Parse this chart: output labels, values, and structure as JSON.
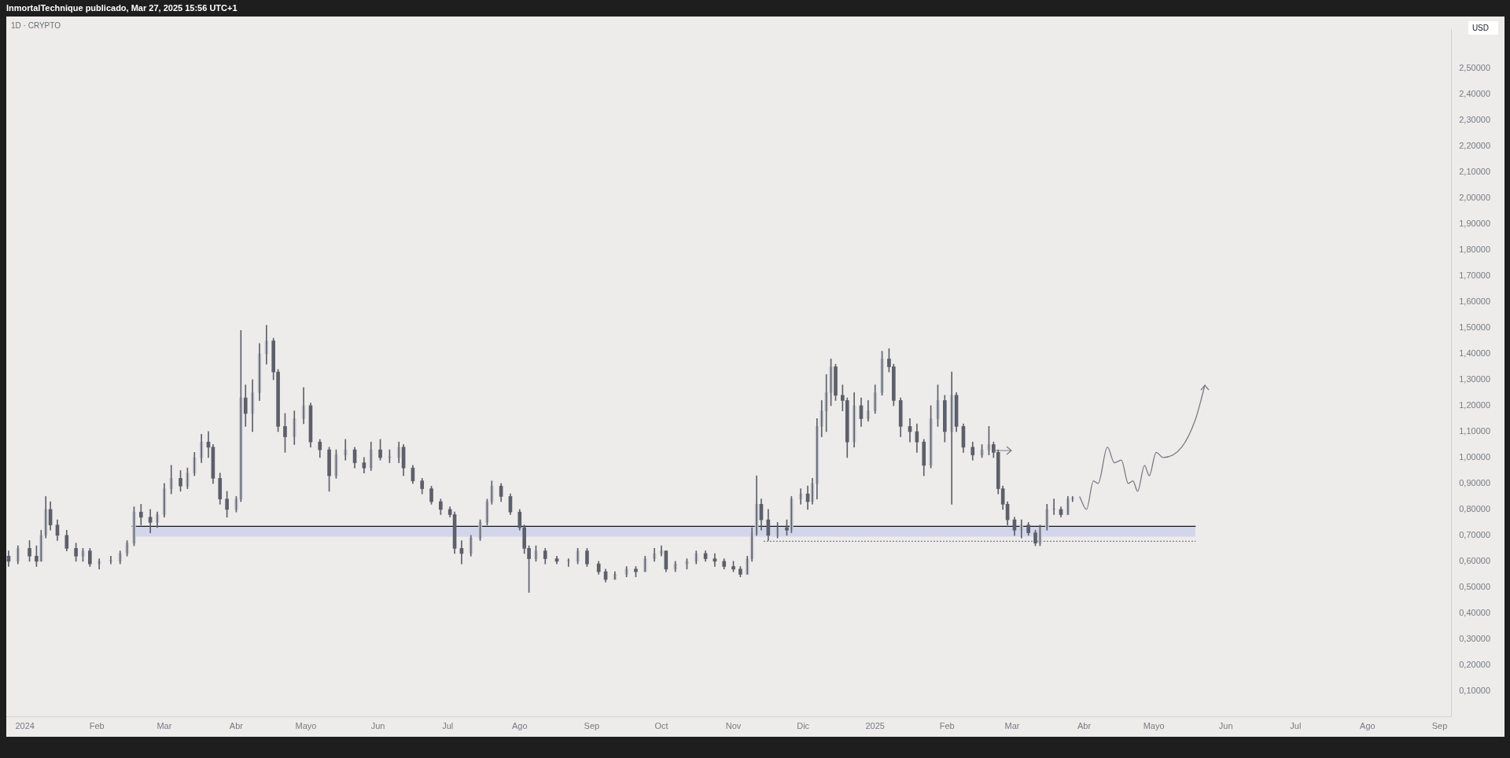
{
  "chart_data": {
    "type": "candlestick",
    "title": "1D · CRYPTO",
    "ylabel": "USD",
    "annotations": [
      "InmortalTechnique publicado, Mar 27, 2025 15:56 UTC+1"
    ],
    "xlim": [
      "2023-12-24",
      "2025-09-06"
    ],
    "ylim": [
      0,
      2.65
    ],
    "xticks": [
      {
        "value": "2024-01-01",
        "label": "2024"
      },
      {
        "value": "2024-02-01",
        "label": "Feb"
      },
      {
        "value": "2024-03-01",
        "label": "Mar"
      },
      {
        "value": "2024-04-01",
        "label": "Abr"
      },
      {
        "value": "2024-05-01",
        "label": "Mayo"
      },
      {
        "value": "2024-06-01",
        "label": "Jun"
      },
      {
        "value": "2024-07-01",
        "label": "Jul"
      },
      {
        "value": "2024-08-01",
        "label": "Ago"
      },
      {
        "value": "2024-09-01",
        "label": "Sep"
      },
      {
        "value": "2024-10-01",
        "label": "Oct"
      },
      {
        "value": "2024-11-01",
        "label": "Nov"
      },
      {
        "value": "2024-12-01",
        "label": "Dic"
      },
      {
        "value": "2025-01-01",
        "label": "2025"
      },
      {
        "value": "2025-02-01",
        "label": "Feb"
      },
      {
        "value": "2025-03-01",
        "label": "Mar"
      },
      {
        "value": "2025-04-01",
        "label": "Abr"
      },
      {
        "value": "2025-05-01",
        "label": "Mayo"
      },
      {
        "value": "2025-06-01",
        "label": "Jun"
      },
      {
        "value": "2025-07-01",
        "label": "Jul"
      },
      {
        "value": "2025-08-01",
        "label": "Ago"
      },
      {
        "value": "2025-09-01",
        "label": "Sep"
      }
    ],
    "yticks": [
      {
        "value": 0.1,
        "label": "0,10000"
      },
      {
        "value": 0.2,
        "label": "0,20000"
      },
      {
        "value": 0.3,
        "label": "0,30000"
      },
      {
        "value": 0.4,
        "label": "0,40000"
      },
      {
        "value": 0.5,
        "label": "0,50000"
      },
      {
        "value": 0.6,
        "label": "0,60000"
      },
      {
        "value": 0.7,
        "label": "0,70000"
      },
      {
        "value": 0.8,
        "label": "0,80000"
      },
      {
        "value": 0.9,
        "label": "0,90000"
      },
      {
        "value": 1.0,
        "label": "1,00000"
      },
      {
        "value": 1.1,
        "label": "1,10000"
      },
      {
        "value": 1.2,
        "label": "1,20000"
      },
      {
        "value": 1.3,
        "label": "1,30000"
      },
      {
        "value": 1.4,
        "label": "1,40000"
      },
      {
        "value": 1.5,
        "label": "1,50000"
      },
      {
        "value": 1.6,
        "label": "1,60000"
      },
      {
        "value": 1.7,
        "label": "1,70000"
      },
      {
        "value": 1.8,
        "label": "1,80000"
      },
      {
        "value": 1.9,
        "label": "1,90000"
      },
      {
        "value": 2.0,
        "label": "2,00000"
      },
      {
        "value": 2.1,
        "label": "2,10000"
      },
      {
        "value": 2.2,
        "label": "2,20000"
      },
      {
        "value": 2.3,
        "label": "2,30000"
      },
      {
        "value": 2.4,
        "label": "2,40000"
      },
      {
        "value": 2.5,
        "label": "2,50000"
      }
    ],
    "series": [
      {
        "type": "line",
        "color": "#131722",
        "line_style": "solid",
        "x": [
          "2024-02-16",
          "2025-05-19"
        ],
        "values": [
          0.735,
          0.735
        ],
        "lower": [
          0.695,
          0.695
        ],
        "upper": [
          0.735,
          0.735
        ]
      },
      {
        "type": "line",
        "color": "#787b86",
        "line_style": "dotted",
        "x": [
          "2024-11-14",
          "2025-05-19"
        ],
        "values": [
          0.677,
          0.677
        ]
      },
      {
        "type": "line",
        "color": "#787b86",
        "line_style": "solid",
        "x": [
          "2025-03-30",
          "2025-04-02",
          "2025-04-05",
          "2025-04-07",
          "2025-04-11",
          "2025-04-14",
          "2025-04-17",
          "2025-04-20",
          "2025-04-22",
          "2025-04-24",
          "2025-04-27",
          "2025-04-29",
          "2025-05-02",
          "2025-05-05",
          "2025-05-13",
          "2025-05-19",
          "2025-05-23"
        ],
        "values": [
          0.85,
          0.8,
          0.91,
          0.9,
          1.04,
          0.98,
          0.99,
          0.9,
          0.91,
          0.87,
          0.97,
          0.93,
          1.02,
          1.0,
          1.04,
          1.15,
          1.28
        ]
      },
      {
        "color": "#5d606b",
        "colors": [
          "#5d606b",
          "#c9cbd3",
          "#5d606b",
          "#5d606b",
          "#c9cbd3",
          "#c9cbd3",
          "#5d606b",
          "#5d606b",
          "#5d606b",
          "#5d606b",
          "#c9cbd3",
          "#5d606b",
          "#c9cbd3",
          "#c9cbd3",
          "#c9cbd3",
          "#c9cbd3",
          "#c9cbd3",
          "#5d606b",
          "#5d606b",
          "#c9cbd3",
          "#c9cbd3",
          "#c9cbd3",
          "#5d606b",
          "#c9cbd3",
          "#c9cbd3",
          "#c9cbd3",
          "#5d606b",
          "#5d606b",
          "#5d606b",
          "#5d606b",
          "#c9cbd3",
          "#c9cbd3",
          "#5d606b",
          "#c9cbd3",
          "#c9cbd3",
          "#c9cbd3",
          "#5d606b",
          "#5d606b",
          "#5d606b",
          "#c9cbd3",
          "#c9cbd3",
          "#5d606b",
          "#5d606b",
          "#5d606b",
          "#c9cbd3",
          "#c9cbd3",
          "#5d606b",
          "#5d606b",
          "#c9cbd3",
          "#5d606b",
          "#c9cbd3",
          "#c9cbd3",
          "#5d606b",
          "#5d606b",
          "#5d606b",
          "#5d606b",
          "#5d606b",
          "#5d606b",
          "#5d606b",
          "#5d606b",
          "#c9cbd3",
          "#c9cbd3",
          "#c9cbd3",
          "#c9cbd3",
          "#5d606b",
          "#5d606b",
          "#5d606b",
          "#5d606b",
          "#5d606b",
          "#c9cbd3",
          "#5d606b",
          "#5d606b",
          "#c9cbd3",
          "#c9cbd3",
          "#5d606b",
          "#5d606b",
          "#5d606b",
          "#c9cbd3",
          "#c9cbd3",
          "#5d606b",
          "#c9cbd3",
          "#c9cbd3",
          "#c9cbd3",
          "#5d606b",
          "#c9cbd3",
          "#c9cbd3",
          "#c9cbd3",
          "#5d606b",
          "#5d606b",
          "#5d606b",
          "#5d606b",
          "#5d606b",
          "#c9cbd3",
          "#c9cbd3",
          "#c9cbd3",
          "#5d606b",
          "#5d606b",
          "#c9cbd3",
          "#5d606b",
          "#c9cbd3",
          "#c9cbd3",
          "#5d606b",
          "#c9cbd3",
          "#c9cbd3",
          "#c9cbd3",
          "#c9cbd3",
          "#c9cbd3",
          "#5d606b",
          "#5d606b",
          "#5d606b",
          "#c9cbd3",
          "#5d606b",
          "#c9cbd3",
          "#c9cbd3",
          "#c9cbd3",
          "#5d606b",
          "#5d606b",
          "#5d606b",
          "#5d606b",
          "#5d606b",
          "#5d606b",
          "#c9cbd3",
          "#c9cbd3",
          "#5d606b",
          "#c9cbd3",
          "#5d606b",
          "#5d606b",
          "#5d606b",
          "#c9cbd3",
          "#c9cbd3",
          "#5d606b",
          "#5d606b",
          "#5d606b",
          "#5d606b",
          "#5d606b",
          "#c9cbd3",
          "#5d606b",
          "#5d606b",
          "#c9cbd3",
          "#c9cbd3",
          "#c9cbd3",
          "#5d606b",
          "#c9cbd3",
          "#c9cbd3"
        ],
        "x": [
          "2023-12-25",
          "2023-12-29",
          "2024-01-03",
          "2024-01-06",
          "2024-01-08",
          "2024-01-10",
          "2024-01-12",
          "2024-01-15",
          "2024-01-19",
          "2024-01-23",
          "2024-01-26",
          "2024-01-29",
          "2024-02-02",
          "2024-02-07",
          "2024-02-11",
          "2024-02-14",
          "2024-02-17",
          "2024-02-20",
          "2024-02-24",
          "2024-02-27",
          "2024-03-01",
          "2024-03-04",
          "2024-03-08",
          "2024-03-11",
          "2024-03-14",
          "2024-03-17",
          "2024-03-20",
          "2024-03-22",
          "2024-03-25",
          "2024-03-28",
          "2024-04-01",
          "2024-04-03",
          "2024-04-05",
          "2024-04-08",
          "2024-04-11",
          "2024-04-14",
          "2024-04-17",
          "2024-04-19",
          "2024-04-22",
          "2024-04-26",
          "2024-04-30",
          "2024-05-03",
          "2024-05-07",
          "2024-05-11",
          "2024-05-14",
          "2024-05-18",
          "2024-05-22",
          "2024-05-26",
          "2024-05-29",
          "2024-06-02",
          "2024-06-06",
          "2024-06-10",
          "2024-06-12",
          "2024-06-16",
          "2024-06-20",
          "2024-06-24",
          "2024-06-28",
          "2024-07-02",
          "2024-07-04",
          "2024-07-07",
          "2024-07-11",
          "2024-07-15",
          "2024-07-18",
          "2024-07-20",
          "2024-07-24",
          "2024-07-28",
          "2024-08-01",
          "2024-08-03",
          "2024-08-05",
          "2024-08-08",
          "2024-08-12",
          "2024-08-17",
          "2024-08-22",
          "2024-08-26",
          "2024-08-30",
          "2024-09-04",
          "2024-09-07",
          "2024-09-11",
          "2024-09-16",
          "2024-09-20",
          "2024-09-24",
          "2024-09-28",
          "2024-10-01",
          "2024-10-03",
          "2024-10-07",
          "2024-10-12",
          "2024-10-16",
          "2024-10-20",
          "2024-10-24",
          "2024-10-28",
          "2024-11-01",
          "2024-11-04",
          "2024-11-07",
          "2024-11-09",
          "2024-11-11",
          "2024-11-13",
          "2024-11-16",
          "2024-11-20",
          "2024-11-24",
          "2024-11-26",
          "2024-11-30",
          "2024-12-03",
          "2024-12-05",
          "2024-12-07",
          "2024-12-09",
          "2024-12-11",
          "2024-12-13",
          "2024-12-15",
          "2024-12-18",
          "2024-12-20",
          "2024-12-23",
          "2024-12-26",
          "2024-12-29",
          "2025-01-01",
          "2025-01-04",
          "2025-01-07",
          "2025-01-09",
          "2025-01-12",
          "2025-01-16",
          "2025-01-19",
          "2025-01-22",
          "2025-01-25",
          "2025-01-28",
          "2025-01-31",
          "2025-02-03",
          "2025-02-05",
          "2025-02-08",
          "2025-02-12",
          "2025-02-16",
          "2025-02-19",
          "2025-02-21",
          "2025-02-23",
          "2025-02-25",
          "2025-02-27",
          "2025-03-02",
          "2025-03-05",
          "2025-03-08",
          "2025-03-11",
          "2025-03-13",
          "2025-03-16",
          "2025-03-19",
          "2025-03-22",
          "2025-03-25",
          "2025-03-27"
        ],
        "ohlc": [
          [
            0.62,
            0.64,
            0.58,
            0.6
          ],
          [
            0.6,
            0.66,
            0.59,
            0.65
          ],
          [
            0.65,
            0.68,
            0.6,
            0.62
          ],
          [
            0.62,
            0.66,
            0.58,
            0.6
          ],
          [
            0.6,
            0.72,
            0.6,
            0.7
          ],
          [
            0.7,
            0.85,
            0.69,
            0.8
          ],
          [
            0.8,
            0.83,
            0.72,
            0.74
          ],
          [
            0.74,
            0.76,
            0.68,
            0.7
          ],
          [
            0.7,
            0.72,
            0.64,
            0.65
          ],
          [
            0.65,
            0.67,
            0.6,
            0.62
          ],
          [
            0.62,
            0.65,
            0.6,
            0.64
          ],
          [
            0.64,
            0.65,
            0.58,
            0.59
          ],
          [
            0.59,
            0.61,
            0.57,
            0.6
          ],
          [
            0.6,
            0.62,
            0.59,
            0.6
          ],
          [
            0.6,
            0.64,
            0.59,
            0.63
          ],
          [
            0.63,
            0.68,
            0.62,
            0.67
          ],
          [
            0.67,
            0.81,
            0.66,
            0.79
          ],
          [
            0.79,
            0.82,
            0.74,
            0.77
          ],
          [
            0.77,
            0.8,
            0.71,
            0.75
          ],
          [
            0.75,
            0.79,
            0.73,
            0.78
          ],
          [
            0.78,
            0.9,
            0.77,
            0.88
          ],
          [
            0.88,
            0.97,
            0.86,
            0.92
          ],
          [
            0.92,
            0.95,
            0.87,
            0.89
          ],
          [
            0.89,
            0.96,
            0.88,
            0.94
          ],
          [
            0.94,
            1.02,
            0.93,
            1.0
          ],
          [
            1.0,
            1.09,
            0.98,
            1.06
          ],
          [
            1.06,
            1.1,
            1.0,
            1.04
          ],
          [
            1.04,
            1.05,
            0.9,
            0.92
          ],
          [
            0.92,
            0.94,
            0.82,
            0.84
          ],
          [
            0.84,
            0.87,
            0.77,
            0.8
          ],
          [
            0.8,
            0.85,
            0.79,
            0.84
          ],
          [
            0.84,
            1.49,
            0.83,
            1.23
          ],
          [
            1.23,
            1.28,
            1.12,
            1.17
          ],
          [
            1.17,
            1.3,
            1.1,
            1.25
          ],
          [
            1.25,
            1.44,
            1.22,
            1.4
          ],
          [
            1.4,
            1.51,
            1.36,
            1.45
          ],
          [
            1.45,
            1.46,
            1.3,
            1.33
          ],
          [
            1.33,
            1.34,
            1.1,
            1.12
          ],
          [
            1.12,
            1.17,
            1.02,
            1.08
          ],
          [
            1.08,
            1.18,
            1.05,
            1.15
          ],
          [
            1.15,
            1.27,
            1.13,
            1.2
          ],
          [
            1.2,
            1.21,
            1.04,
            1.06
          ],
          [
            1.06,
            1.07,
            1.0,
            1.03
          ],
          [
            1.03,
            1.04,
            0.87,
            0.93
          ],
          [
            0.93,
            1.03,
            0.92,
            1.01
          ],
          [
            1.01,
            1.07,
            0.99,
            1.03
          ],
          [
            1.03,
            1.04,
            0.96,
            0.98
          ],
          [
            0.98,
            1.0,
            0.94,
            0.96
          ],
          [
            0.96,
            1.06,
            0.95,
            1.03
          ],
          [
            1.03,
            1.07,
            0.99,
            1.0
          ],
          [
            1.0,
            1.03,
            0.98,
            1.0
          ],
          [
            1.0,
            1.06,
            0.98,
            1.04
          ],
          [
            1.04,
            1.05,
            0.93,
            0.96
          ],
          [
            0.96,
            0.97,
            0.9,
            0.91
          ],
          [
            0.91,
            0.92,
            0.86,
            0.88
          ],
          [
            0.88,
            0.89,
            0.82,
            0.83
          ],
          [
            0.83,
            0.84,
            0.78,
            0.8
          ],
          [
            0.8,
            0.81,
            0.77,
            0.78
          ],
          [
            0.78,
            0.79,
            0.63,
            0.65
          ],
          [
            0.65,
            0.68,
            0.59,
            0.63
          ],
          [
            0.63,
            0.7,
            0.62,
            0.69
          ],
          [
            0.69,
            0.76,
            0.68,
            0.75
          ],
          [
            0.75,
            0.84,
            0.74,
            0.83
          ],
          [
            0.83,
            0.91,
            0.82,
            0.89
          ],
          [
            0.89,
            0.9,
            0.83,
            0.85
          ],
          [
            0.85,
            0.86,
            0.78,
            0.79
          ],
          [
            0.79,
            0.8,
            0.72,
            0.73
          ],
          [
            0.73,
            0.74,
            0.63,
            0.65
          ],
          [
            0.65,
            0.66,
            0.48,
            0.61
          ],
          [
            0.61,
            0.66,
            0.6,
            0.64
          ],
          [
            0.64,
            0.65,
            0.59,
            0.61
          ],
          [
            0.61,
            0.62,
            0.59,
            0.6
          ],
          [
            0.6,
            0.61,
            0.58,
            0.6
          ],
          [
            0.6,
            0.65,
            0.59,
            0.64
          ],
          [
            0.64,
            0.65,
            0.58,
            0.59
          ],
          [
            0.59,
            0.6,
            0.55,
            0.56
          ],
          [
            0.56,
            0.57,
            0.52,
            0.53
          ],
          [
            0.53,
            0.56,
            0.53,
            0.55
          ],
          [
            0.55,
            0.58,
            0.54,
            0.57
          ],
          [
            0.57,
            0.58,
            0.54,
            0.56
          ],
          [
            0.56,
            0.62,
            0.56,
            0.61
          ],
          [
            0.61,
            0.65,
            0.6,
            0.63
          ],
          [
            0.63,
            0.66,
            0.62,
            0.64
          ],
          [
            0.64,
            0.64,
            0.56,
            0.57
          ],
          [
            0.57,
            0.6,
            0.56,
            0.59
          ],
          [
            0.59,
            0.61,
            0.57,
            0.6
          ],
          [
            0.6,
            0.64,
            0.59,
            0.63
          ],
          [
            0.63,
            0.64,
            0.6,
            0.61
          ],
          [
            0.61,
            0.63,
            0.58,
            0.6
          ],
          [
            0.6,
            0.61,
            0.57,
            0.58
          ],
          [
            0.58,
            0.6,
            0.56,
            0.57
          ],
          [
            0.57,
            0.58,
            0.54,
            0.55
          ],
          [
            0.55,
            0.62,
            0.55,
            0.61
          ],
          [
            0.61,
            0.73,
            0.6,
            0.71
          ],
          [
            0.71,
            0.93,
            0.7,
            0.82
          ],
          [
            0.82,
            0.84,
            0.72,
            0.76
          ],
          [
            0.76,
            0.8,
            0.68,
            0.7
          ],
          [
            0.7,
            0.75,
            0.69,
            0.73
          ],
          [
            0.73,
            0.76,
            0.7,
            0.72
          ],
          [
            0.72,
            0.85,
            0.71,
            0.84
          ],
          [
            0.84,
            0.88,
            0.82,
            0.86
          ],
          [
            0.86,
            0.89,
            0.8,
            0.83
          ],
          [
            0.83,
            0.92,
            0.82,
            0.9
          ],
          [
            0.9,
            1.15,
            0.84,
            1.12
          ],
          [
            1.12,
            1.22,
            1.08,
            1.18
          ],
          [
            1.18,
            1.32,
            1.1,
            1.25
          ],
          [
            1.25,
            1.38,
            1.2,
            1.35
          ],
          [
            1.35,
            1.36,
            1.22,
            1.24
          ],
          [
            1.24,
            1.28,
            1.18,
            1.22
          ],
          [
            1.22,
            1.23,
            1.0,
            1.06
          ],
          [
            1.06,
            1.25,
            1.04,
            1.2
          ],
          [
            1.2,
            1.23,
            1.12,
            1.15
          ],
          [
            1.15,
            1.22,
            1.14,
            1.18
          ],
          [
            1.18,
            1.28,
            1.17,
            1.25
          ],
          [
            1.25,
            1.41,
            1.24,
            1.38
          ],
          [
            1.38,
            1.42,
            1.33,
            1.35
          ],
          [
            1.35,
            1.36,
            1.2,
            1.22
          ],
          [
            1.22,
            1.23,
            1.08,
            1.12
          ],
          [
            1.12,
            1.15,
            1.06,
            1.1
          ],
          [
            1.1,
            1.13,
            1.02,
            1.06
          ],
          [
            1.06,
            1.07,
            0.93,
            0.97
          ],
          [
            0.97,
            1.2,
            0.96,
            1.15
          ],
          [
            1.15,
            1.28,
            1.12,
            1.22
          ],
          [
            1.22,
            1.24,
            1.06,
            1.1
          ],
          [
            1.1,
            1.33,
            0.82,
            1.24
          ],
          [
            1.24,
            1.25,
            1.1,
            1.12
          ],
          [
            1.12,
            1.13,
            1.02,
            1.04
          ],
          [
            1.04,
            1.06,
            0.99,
            1.01
          ],
          [
            1.01,
            1.05,
            1.0,
            1.03
          ],
          [
            1.03,
            1.12,
            1.01,
            1.05
          ],
          [
            1.05,
            1.06,
            1.0,
            1.02
          ],
          [
            1.02,
            1.03,
            0.86,
            0.88
          ],
          [
            0.88,
            0.89,
            0.8,
            0.82
          ],
          [
            0.82,
            0.83,
            0.74,
            0.76
          ],
          [
            0.76,
            0.77,
            0.7,
            0.72
          ],
          [
            0.72,
            0.76,
            0.69,
            0.74
          ],
          [
            0.74,
            0.75,
            0.7,
            0.71
          ],
          [
            0.71,
            0.72,
            0.66,
            0.67
          ],
          [
            0.67,
            0.74,
            0.66,
            0.73
          ],
          [
            0.73,
            0.82,
            0.72,
            0.8
          ],
          [
            0.8,
            0.84,
            0.78,
            0.8
          ],
          [
            0.8,
            0.81,
            0.77,
            0.78
          ],
          [
            0.78,
            0.85,
            0.78,
            0.84
          ],
          [
            0.84,
            0.85,
            0.83,
            0.84
          ]
        ]
      }
    ]
  }
}
